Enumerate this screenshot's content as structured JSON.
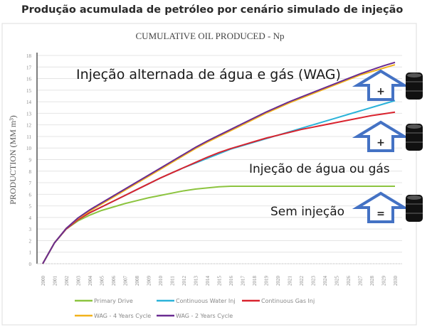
{
  "header": {
    "title": "Produção acumulada de petróleo por cenário simulado de injeção"
  },
  "chart_data": {
    "type": "line",
    "title": "CUMULATIVE  OIL PRODUCED - Np",
    "xlabel": "",
    "ylabel": "PRODUCTION (MM m³)",
    "ylim": [
      0,
      18
    ],
    "yticks": [
      0,
      1,
      2,
      3,
      4,
      5,
      6,
      7,
      8,
      9,
      10,
      11,
      12,
      13,
      14,
      15,
      16,
      17,
      18
    ],
    "x": [
      2000,
      2001,
      2002,
      2003,
      2004,
      2005,
      2006,
      2007,
      2008,
      2009,
      2010,
      2011,
      2012,
      2013,
      2014,
      2015,
      2016,
      2017,
      2018,
      2019,
      2020,
      2021,
      2022,
      2023,
      2024,
      2025,
      2026,
      2027,
      2028,
      2029,
      2030
    ],
    "grid": true,
    "legend_position": "bottom",
    "series": [
      {
        "name": "Primary Drive",
        "color": "#8cc43f",
        "values": [
          0,
          1.8,
          3.0,
          3.7,
          4.2,
          4.6,
          4.9,
          5.2,
          5.45,
          5.7,
          5.9,
          6.1,
          6.3,
          6.45,
          6.55,
          6.65,
          6.7,
          6.7,
          6.7,
          6.7,
          6.7,
          6.7,
          6.7,
          6.7,
          6.7,
          6.7,
          6.7,
          6.7,
          6.7,
          6.7,
          6.7
        ]
      },
      {
        "name": "Continuous Water Inj",
        "color": "#2bb3d9",
        "values": [
          0,
          1.8,
          3.0,
          3.8,
          4.4,
          4.9,
          5.4,
          5.9,
          6.4,
          6.9,
          7.4,
          7.85,
          8.3,
          8.7,
          9.1,
          9.5,
          9.9,
          10.2,
          10.5,
          10.8,
          11.1,
          11.4,
          11.7,
          12.0,
          12.3,
          12.6,
          12.9,
          13.2,
          13.5,
          13.8,
          14.1
        ]
      },
      {
        "name": "Continuous Gas Inj",
        "color": "#d9232e",
        "values": [
          0,
          1.8,
          3.0,
          3.8,
          4.4,
          4.9,
          5.4,
          5.9,
          6.4,
          6.9,
          7.4,
          7.85,
          8.3,
          8.75,
          9.2,
          9.6,
          9.95,
          10.25,
          10.55,
          10.85,
          11.1,
          11.35,
          11.6,
          11.8,
          12.0,
          12.2,
          12.4,
          12.6,
          12.8,
          12.95,
          13.1
        ]
      },
      {
        "name": "WAG - 4 Years Cycle",
        "color": "#f2b21b",
        "values": [
          0,
          1.8,
          3.05,
          3.9,
          4.55,
          5.15,
          5.75,
          6.35,
          6.95,
          7.55,
          8.15,
          8.75,
          9.35,
          9.95,
          10.5,
          11.0,
          11.5,
          12.0,
          12.5,
          13.0,
          13.45,
          13.9,
          14.3,
          14.7,
          15.1,
          15.5,
          15.9,
          16.3,
          16.6,
          16.9,
          17.2
        ]
      },
      {
        "name": "WAG - 2 Years Cycle",
        "color": "#6a2c91",
        "values": [
          0,
          1.8,
          3.05,
          3.95,
          4.65,
          5.25,
          5.85,
          6.45,
          7.05,
          7.65,
          8.25,
          8.85,
          9.45,
          10.05,
          10.6,
          11.1,
          11.6,
          12.1,
          12.6,
          13.1,
          13.55,
          14.0,
          14.4,
          14.8,
          15.2,
          15.6,
          16.0,
          16.4,
          16.75,
          17.1,
          17.4
        ]
      }
    ],
    "annotations": [
      {
        "text": "Injeção alternada de água e gás (WAG)",
        "symbol": "+"
      },
      {
        "text": "Injeção de água ou gás",
        "symbol": "+"
      },
      {
        "text": "Sem injeção",
        "symbol": "="
      }
    ]
  }
}
